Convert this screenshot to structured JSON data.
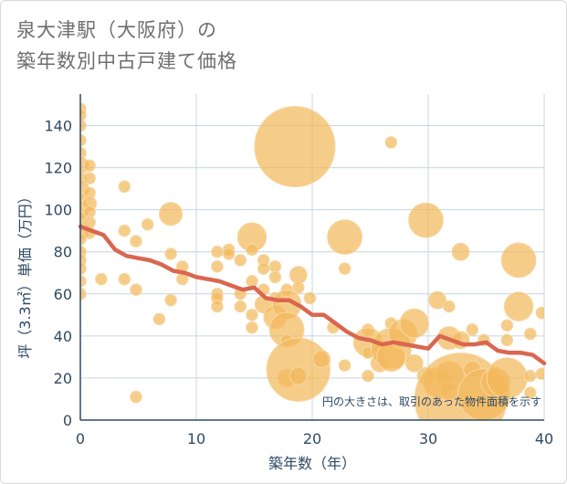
{
  "title_lines": [
    "泉大津駅（大阪府）の",
    "築年数別中古戸建て価格"
  ],
  "chart_data": {
    "type": "scatter",
    "xlabel": "築年数（年）",
    "ylabel": "坪（3.3㎡）単価（万円）",
    "xlim": [
      0,
      40
    ],
    "ylim": [
      0,
      155
    ],
    "x_ticks": [
      0,
      10,
      20,
      30,
      40
    ],
    "y_ticks": [
      0,
      20,
      40,
      60,
      80,
      100,
      120,
      140
    ],
    "grid": true,
    "annotation": "円の大きさは、取引のあった物件面積を示す",
    "colors": {
      "bubble": "#f3b85b",
      "bubble_stroke": "#f7d8a4",
      "trend": "#d9674f",
      "grid": "#c6d4e2",
      "axis": "#2f4a63"
    },
    "points": [
      {
        "x": 0,
        "y": 148,
        "s": 1
      },
      {
        "x": 0,
        "y": 145,
        "s": 1
      },
      {
        "x": 0,
        "y": 140,
        "s": 1
      },
      {
        "x": 0,
        "y": 133,
        "s": 1
      },
      {
        "x": 0,
        "y": 127,
        "s": 1
      },
      {
        "x": 0,
        "y": 121,
        "s": 1.5
      },
      {
        "x": 0,
        "y": 115,
        "s": 1
      },
      {
        "x": 0,
        "y": 110,
        "s": 1.5
      },
      {
        "x": 0,
        "y": 105,
        "s": 1
      },
      {
        "x": 0,
        "y": 100,
        "s": 1.5
      },
      {
        "x": 0,
        "y": 96,
        "s": 1
      },
      {
        "x": 0,
        "y": 90,
        "s": 1.5
      },
      {
        "x": 0,
        "y": 86,
        "s": 1
      },
      {
        "x": 0,
        "y": 80,
        "s": 1
      },
      {
        "x": 0,
        "y": 76,
        "s": 1
      },
      {
        "x": 0,
        "y": 72,
        "s": 1
      },
      {
        "x": 0,
        "y": 66,
        "s": 1
      },
      {
        "x": 0,
        "y": 60,
        "s": 1
      },
      {
        "x": 0.8,
        "y": 121,
        "s": 1
      },
      {
        "x": 0.8,
        "y": 115,
        "s": 1
      },
      {
        "x": 0.8,
        "y": 108,
        "s": 1
      },
      {
        "x": 0.8,
        "y": 103,
        "s": 1.2
      },
      {
        "x": 0.8,
        "y": 99,
        "s": 1
      },
      {
        "x": 0.8,
        "y": 94,
        "s": 1
      },
      {
        "x": 0.8,
        "y": 89,
        "s": 1
      },
      {
        "x": 1.8,
        "y": 67,
        "s": 1
      },
      {
        "x": 3.8,
        "y": 111,
        "s": 1
      },
      {
        "x": 3.8,
        "y": 90,
        "s": 1
      },
      {
        "x": 3.8,
        "y": 67,
        "s": 1
      },
      {
        "x": 4.8,
        "y": 85,
        "s": 1
      },
      {
        "x": 4.8,
        "y": 62,
        "s": 1
      },
      {
        "x": 4.8,
        "y": 11,
        "s": 1
      },
      {
        "x": 5.8,
        "y": 93,
        "s": 1
      },
      {
        "x": 6.8,
        "y": 48,
        "s": 1
      },
      {
        "x": 7.8,
        "y": 98,
        "s": 2
      },
      {
        "x": 7.8,
        "y": 79,
        "s": 1
      },
      {
        "x": 7.8,
        "y": 57,
        "s": 1
      },
      {
        "x": 8.8,
        "y": 73,
        "s": 1
      },
      {
        "x": 8.8,
        "y": 67,
        "s": 1
      },
      {
        "x": 11.8,
        "y": 80,
        "s": 1
      },
      {
        "x": 11.8,
        "y": 73,
        "s": 1
      },
      {
        "x": 11.8,
        "y": 60,
        "s": 1
      },
      {
        "x": 11.8,
        "y": 58,
        "s": 1
      },
      {
        "x": 11.8,
        "y": 54,
        "s": 1
      },
      {
        "x": 12.8,
        "y": 81,
        "s": 1
      },
      {
        "x": 12.8,
        "y": 79,
        "s": 1
      },
      {
        "x": 13.8,
        "y": 76,
        "s": 1
      },
      {
        "x": 13.8,
        "y": 60,
        "s": 1
      },
      {
        "x": 13.8,
        "y": 54,
        "s": 1
      },
      {
        "x": 14.8,
        "y": 87,
        "s": 2.5
      },
      {
        "x": 14.8,
        "y": 81,
        "s": 1
      },
      {
        "x": 14.8,
        "y": 66,
        "s": 1
      },
      {
        "x": 14.8,
        "y": 50,
        "s": 1
      },
      {
        "x": 14.8,
        "y": 44,
        "s": 1
      },
      {
        "x": 15.8,
        "y": 76,
        "s": 1
      },
      {
        "x": 15.8,
        "y": 72,
        "s": 1
      },
      {
        "x": 15.8,
        "y": 62,
        "s": 1
      },
      {
        "x": 15.8,
        "y": 55,
        "s": 1.5
      },
      {
        "x": 16.8,
        "y": 73,
        "s": 1
      },
      {
        "x": 16.8,
        "y": 68,
        "s": 1
      },
      {
        "x": 16.8,
        "y": 58,
        "s": 1
      },
      {
        "x": 16.8,
        "y": 49,
        "s": 2
      },
      {
        "x": 17.8,
        "y": 62,
        "s": 1
      },
      {
        "x": 17.8,
        "y": 55,
        "s": 2.5
      },
      {
        "x": 17.8,
        "y": 43,
        "s": 3
      },
      {
        "x": 17.8,
        "y": 38,
        "s": 1
      },
      {
        "x": 17.8,
        "y": 20,
        "s": 1.5
      },
      {
        "x": 18.5,
        "y": 130,
        "s": 7
      },
      {
        "x": 18.8,
        "y": 69,
        "s": 1.5
      },
      {
        "x": 18.8,
        "y": 63,
        "s": 1
      },
      {
        "x": 18.8,
        "y": 24,
        "s": 5.5
      },
      {
        "x": 18.8,
        "y": 21,
        "s": 1.5
      },
      {
        "x": 19.8,
        "y": 58,
        "s": 1
      },
      {
        "x": 20.8,
        "y": 29,
        "s": 1.5
      },
      {
        "x": 21.8,
        "y": 44,
        "s": 1
      },
      {
        "x": 22.8,
        "y": 87,
        "s": 3
      },
      {
        "x": 22.8,
        "y": 72,
        "s": 1
      },
      {
        "x": 22.8,
        "y": 26,
        "s": 1
      },
      {
        "x": 24.8,
        "y": 43,
        "s": 1
      },
      {
        "x": 24.8,
        "y": 37,
        "s": 2.5
      },
      {
        "x": 24.8,
        "y": 32,
        "s": 1
      },
      {
        "x": 24.8,
        "y": 21,
        "s": 1
      },
      {
        "x": 25.8,
        "y": 34,
        "s": 1
      },
      {
        "x": 25.8,
        "y": 27,
        "s": 1.5
      },
      {
        "x": 26.8,
        "y": 132,
        "s": 1
      },
      {
        "x": 26.8,
        "y": 46,
        "s": 1
      },
      {
        "x": 26.8,
        "y": 34,
        "s": 3.5
      },
      {
        "x": 26.8,
        "y": 30,
        "s": 2.5
      },
      {
        "x": 27.8,
        "y": 41,
        "s": 2.5
      },
      {
        "x": 28.8,
        "y": 46,
        "s": 2.5
      },
      {
        "x": 28.8,
        "y": 27,
        "s": 1.5
      },
      {
        "x": 29.8,
        "y": 95,
        "s": 3
      },
      {
        "x": 29.8,
        "y": 21,
        "s": 1.5
      },
      {
        "x": 30.8,
        "y": 57,
        "s": 1.5
      },
      {
        "x": 30.8,
        "y": 18,
        "s": 2.5
      },
      {
        "x": 31.8,
        "y": 54,
        "s": 1
      },
      {
        "x": 31.8,
        "y": 39,
        "s": 2
      },
      {
        "x": 31.8,
        "y": 21,
        "s": 2.5
      },
      {
        "x": 31.8,
        "y": 14,
        "s": 1.5
      },
      {
        "x": 32.8,
        "y": 80,
        "s": 1.5
      },
      {
        "x": 32.8,
        "y": 38,
        "s": 1.5
      },
      {
        "x": 32.8,
        "y": 10,
        "s": 8
      },
      {
        "x": 33.8,
        "y": 43,
        "s": 1
      },
      {
        "x": 33.8,
        "y": 24,
        "s": 1.5
      },
      {
        "x": 34.8,
        "y": 38,
        "s": 1
      },
      {
        "x": 34.8,
        "y": 22,
        "s": 1
      },
      {
        "x": 34.8,
        "y": 12,
        "s": 4.5
      },
      {
        "x": 35.8,
        "y": 18,
        "s": 2.5
      },
      {
        "x": 36.8,
        "y": 45,
        "s": 1
      },
      {
        "x": 36.8,
        "y": 38,
        "s": 1
      },
      {
        "x": 36.8,
        "y": 20,
        "s": 3.5
      },
      {
        "x": 37.8,
        "y": 76,
        "s": 3
      },
      {
        "x": 37.8,
        "y": 54,
        "s": 2.5
      },
      {
        "x": 38.8,
        "y": 41,
        "s": 1
      },
      {
        "x": 38.8,
        "y": 21,
        "s": 1
      },
      {
        "x": 38.8,
        "y": 13,
        "s": 1
      },
      {
        "x": 39.8,
        "y": 51,
        "s": 1
      },
      {
        "x": 39.8,
        "y": 22,
        "s": 1
      }
    ],
    "trend": {
      "x": [
        0,
        1,
        2,
        3,
        4,
        5,
        6,
        7,
        8,
        9,
        10,
        11,
        12,
        13,
        14,
        15,
        16,
        17,
        18,
        19,
        20,
        21,
        22,
        23,
        24,
        25,
        26,
        27,
        28,
        29,
        30,
        31,
        32,
        33,
        34,
        35,
        36,
        37,
        38,
        39,
        40
      ],
      "y": [
        92,
        90,
        88,
        81,
        78,
        77,
        76,
        74,
        71,
        70,
        68,
        67,
        66,
        64,
        62,
        63,
        58,
        57,
        57,
        54,
        50,
        50,
        46,
        42,
        39,
        38,
        36,
        37,
        36,
        35,
        34,
        40,
        38,
        36,
        36,
        37,
        33,
        32,
        32,
        31,
        27
      ]
    }
  }
}
